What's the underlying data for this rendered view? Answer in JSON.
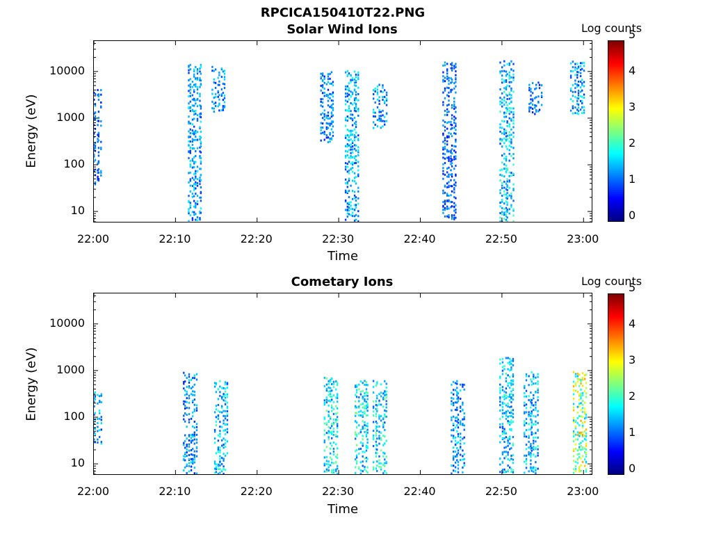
{
  "title": "RPCICA150410T22.PNG",
  "colorbar": {
    "title": "Log counts",
    "ticks": [
      "0",
      "1",
      "2",
      "3",
      "4",
      "5"
    ]
  },
  "chart_data": [
    {
      "type": "heatmap",
      "title": "Solar Wind Ions",
      "xlabel": "Time",
      "ylabel": "Energy (eV)",
      "x_ticks": [
        "22:00",
        "22:10",
        "22:20",
        "22:30",
        "22:40",
        "22:50",
        "23:00"
      ],
      "y_ticks": [
        "10",
        "100",
        "1000",
        "10000"
      ],
      "y_scale": "log",
      "ylim": [
        6,
        45000
      ],
      "xlim_minutes": [
        0,
        61
      ],
      "clim": [
        0,
        5
      ],
      "colorbar_label": "Log counts",
      "bursts": [
        {
          "t": 0,
          "emin": 35,
          "emax": 4000,
          "level": 1
        },
        {
          "t": 12.3,
          "emin": 6,
          "emax": 15000,
          "level": 1.3
        },
        {
          "t": 15.2,
          "emin": 1300,
          "emax": 16000,
          "level": 1.2
        },
        {
          "t": 28.5,
          "emin": 300,
          "emax": 9000,
          "level": 1.2
        },
        {
          "t": 31.5,
          "emin": 6,
          "emax": 10000,
          "level": 1.4
        },
        {
          "t": 35,
          "emin": 600,
          "emax": 5000,
          "level": 1.3
        },
        {
          "t": 43.5,
          "emin": 6,
          "emax": 17000,
          "level": 1
        },
        {
          "t": 50.5,
          "emin": 6,
          "emax": 16000,
          "level": 1.6
        },
        {
          "t": 54,
          "emin": 1200,
          "emax": 6000,
          "level": 1
        },
        {
          "t": 59.2,
          "emin": 1200,
          "emax": 15000,
          "level": 1.4
        }
      ]
    },
    {
      "type": "heatmap",
      "title": "Cometary Ions",
      "xlabel": "Time",
      "ylabel": "Energy (eV)",
      "x_ticks": [
        "22:00",
        "22:10",
        "22:20",
        "22:30",
        "22:40",
        "22:50",
        "23:00"
      ],
      "y_ticks": [
        "10",
        "100",
        "1000",
        "10000"
      ],
      "y_scale": "log",
      "ylim": [
        6,
        45000
      ],
      "xlim_minutes": [
        0,
        61
      ],
      "clim": [
        0,
        5
      ],
      "colorbar_label": "Log counts",
      "bursts": [
        {
          "t": 0,
          "emin": 25,
          "emax": 350,
          "level": 1.3
        },
        {
          "t": 11.7,
          "emin": 6,
          "emax": 900,
          "level": 1.2
        },
        {
          "t": 15.5,
          "emin": 6,
          "emax": 600,
          "level": 1.6
        },
        {
          "t": 29,
          "emin": 6,
          "emax": 650,
          "level": 1.8
        },
        {
          "t": 32.7,
          "emin": 6,
          "emax": 600,
          "level": 1.8
        },
        {
          "t": 35,
          "emin": 6,
          "emax": 600,
          "level": 1.8
        },
        {
          "t": 44.5,
          "emin": 6,
          "emax": 600,
          "level": 1.3
        },
        {
          "t": 50.5,
          "emin": 6,
          "emax": 1800,
          "level": 1.6
        },
        {
          "t": 53.5,
          "emin": 6,
          "emax": 900,
          "level": 1.5
        },
        {
          "t": 59.5,
          "emin": 6,
          "emax": 900,
          "level": 2.7
        }
      ]
    }
  ]
}
